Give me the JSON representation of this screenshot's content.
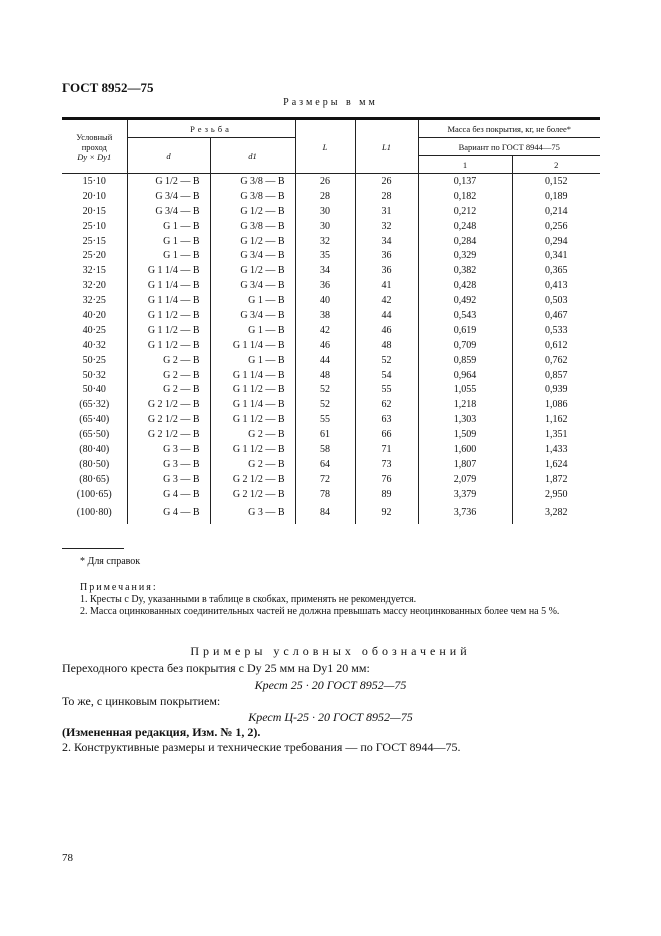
{
  "header": {
    "title": "ГОСТ 8952—75",
    "units": "Размеры в мм"
  },
  "table": {
    "col_dn": [
      "Условный",
      "проход",
      "Dy × Dy1"
    ],
    "col_thread": "Резьба",
    "col_d": "d",
    "col_d1": "d1",
    "col_L": "L",
    "col_L1": "L1",
    "col_mass": "Масса без покрытия, кг, не более*",
    "col_variant": "Вариант по ГОСТ 8944—75",
    "col_v1": "1",
    "col_v2": "2",
    "rows": [
      [
        "15·10",
        "G 1/2 — B",
        "G 3/8 — B",
        "26",
        "26",
        "0,137",
        "0,152"
      ],
      [
        "20·10",
        "G 3/4 — B",
        "G 3/8 — B",
        "28",
        "28",
        "0,182",
        "0,189"
      ],
      [
        "20·15",
        "G 3/4 — B",
        "G 1/2 — B",
        "30",
        "31",
        "0,212",
        "0,214"
      ],
      [
        "25·10",
        "G 1 — B",
        "G 3/8 — B",
        "30",
        "32",
        "0,248",
        "0,256"
      ],
      [
        "25·15",
        "G 1 — B",
        "G 1/2 — B",
        "32",
        "34",
        "0,284",
        "0,294"
      ],
      [
        "25·20",
        "G 1 — B",
        "G 3/4 — B",
        "35",
        "36",
        "0,329",
        "0,341"
      ],
      [
        "32·15",
        "G 1 1/4 — B",
        "G 1/2 — B",
        "34",
        "36",
        "0,382",
        "0,365"
      ],
      [
        "32·20",
        "G 1 1/4 — B",
        "G 3/4 — B",
        "36",
        "41",
        "0,428",
        "0,413"
      ],
      [
        "32·25",
        "G 1 1/4 — B",
        "G 1 — B",
        "40",
        "42",
        "0,492",
        "0,503"
      ],
      [
        "40·20",
        "G 1 1/2 — B",
        "G 3/4 — B",
        "38",
        "44",
        "0,543",
        "0,467"
      ],
      [
        "40·25",
        "G 1 1/2 — B",
        "G 1 — B",
        "42",
        "46",
        "0,619",
        "0,533"
      ],
      [
        "40·32",
        "G 1 1/2 — B",
        "G 1 1/4 — B",
        "46",
        "48",
        "0,709",
        "0,612"
      ],
      [
        "50·25",
        "G 2 — B",
        "G 1 — B",
        "44",
        "52",
        "0,859",
        "0,762"
      ],
      [
        "50·32",
        "G 2 — B",
        "G 1 1/4 — B",
        "48",
        "54",
        "0,964",
        "0,857"
      ],
      [
        "50·40",
        "G 2 — B",
        "G 1 1/2 — B",
        "52",
        "55",
        "1,055",
        "0,939"
      ],
      [
        "(65·32)",
        "G 2 1/2 — B",
        "G 1 1/4 — B",
        "52",
        "62",
        "1,218",
        "1,086"
      ],
      [
        "(65·40)",
        "G 2 1/2 — B",
        "G 1 1/2 — B",
        "55",
        "63",
        "1,303",
        "1,162"
      ],
      [
        "(65·50)",
        "G 2 1/2 — B",
        "G 2 — B",
        "61",
        "66",
        "1,509",
        "1,351"
      ],
      [
        "(80·40)",
        "G 3 — B",
        "G 1 1/2 — B",
        "58",
        "71",
        "1,600",
        "1,433"
      ],
      [
        "(80·50)",
        "G 3 — B",
        "G 2 — B",
        "64",
        "73",
        "1,807",
        "1,624"
      ],
      [
        "(80·65)",
        "G 3 — B",
        "G 2 1/2 — B",
        "72",
        "76",
        "2,079",
        "1,872"
      ],
      [
        "(100·65)",
        "G 4 — B",
        "G 2 1/2 — B",
        "78",
        "89",
        "3,379",
        "2,950"
      ],
      [
        "(100·80)",
        "G 4 — B",
        "G 3 — B",
        "84",
        "92",
        "3,736",
        "3,282"
      ]
    ]
  },
  "footnote": "* Для справок",
  "notes": {
    "heading": "Примечания:",
    "n1": "1. Кресты с Dy, указанными в таблице в скобках, применять не рекомендуется.",
    "n2": "2. Масса оцинкованных соединительных частей не должна превышать массу неоцинкованных более чем на 5 %."
  },
  "examples": {
    "heading": "Примеры условных обозначений",
    "e1": "Переходного креста без покрытия с Dy 25 мм на Dy1 20 мм:",
    "e1_code": "Крест 25 · 20 ГОСТ 8952—75",
    "e2": "То же, с цинковым покрытием:",
    "e2_code": "Крест Ц-25 · 20 ГОСТ 8952—75",
    "amend": "(Измененная редакция, Изм. № 1, 2).",
    "item2": "2. Конструктивные размеры и технические требования — по ГОСТ 8944—75."
  },
  "page_number": "78"
}
